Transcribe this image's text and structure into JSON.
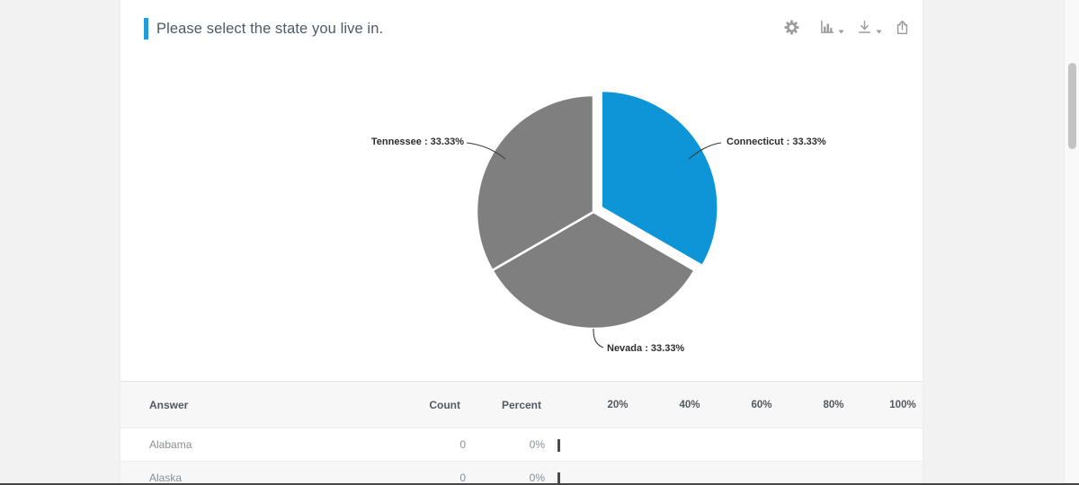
{
  "window": {
    "page_bg": "#f2f2f2",
    "card_bg": "#ffffff"
  },
  "header": {
    "title": "Please select the state you live in.",
    "accent_color": "#1f9cd9"
  },
  "toolbar": {
    "icons": [
      {
        "name": "settings-gear"
      },
      {
        "name": "chart-type-selector",
        "has_caret": true
      },
      {
        "name": "download",
        "has_caret": true
      },
      {
        "name": "export-share"
      }
    ],
    "icon_color": "#9b9b9b"
  },
  "chart_data": {
    "type": "pie",
    "title": "Please select the state you live in.",
    "direction": "clockwise",
    "start_angle_deg": 0,
    "separator_color": "#ffffff",
    "slices": [
      {
        "label": "Connecticut",
        "value": 33.33,
        "display": "Connecticut : 33.33%",
        "color": "#0e95d8",
        "exploded": true
      },
      {
        "label": "Nevada",
        "value": 33.33,
        "display": "Nevada : 33.33%",
        "color": "#7f7f7f",
        "exploded": false
      },
      {
        "label": "Tennessee",
        "value": 33.33,
        "display": "Tennessee : 33.33%",
        "color": "#7f7f7f",
        "exploded": false
      }
    ]
  },
  "table": {
    "columns": [
      "Answer",
      "Count",
      "Percent"
    ],
    "scale_labels": [
      "20%",
      "40%",
      "60%",
      "80%",
      "100%"
    ],
    "rows": [
      {
        "answer": "Alabama",
        "count": "0",
        "percent": "0%"
      },
      {
        "answer": "Alaska",
        "count": "0",
        "percent": "0%"
      }
    ],
    "zero_bar_color": "#4a4a4a"
  },
  "scrollbar": {
    "thumb_color": "#c3c3c3"
  }
}
